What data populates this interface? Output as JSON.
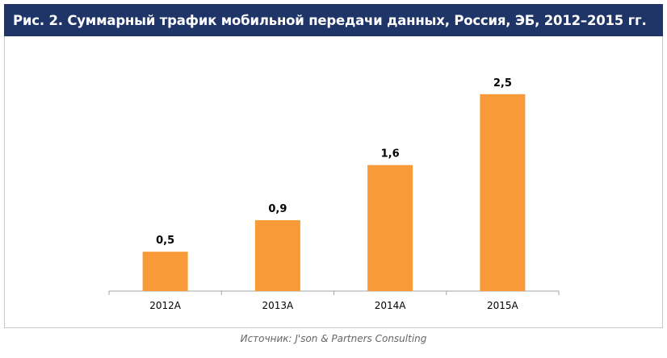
{
  "title": "Рис. 2. Суммарный трафик мобильной передачи данных, Россия, ЭБ, 2012–2015 гг.",
  "source": "Источник: J'son & Partners Consulting",
  "colors": {
    "title_background": "#1f3467",
    "bar": "#f99a38",
    "axis": "#a6a6a6"
  },
  "chart_data": {
    "type": "bar",
    "categories": [
      "2012A",
      "2013A",
      "2014A",
      "2015A"
    ],
    "values": [
      0.5,
      0.9,
      1.6,
      2.5
    ],
    "value_labels": [
      "0,5",
      "0,9",
      "1,6",
      "2,5"
    ],
    "ylim": [
      0,
      3.0
    ],
    "grid": false,
    "legend": "none"
  }
}
